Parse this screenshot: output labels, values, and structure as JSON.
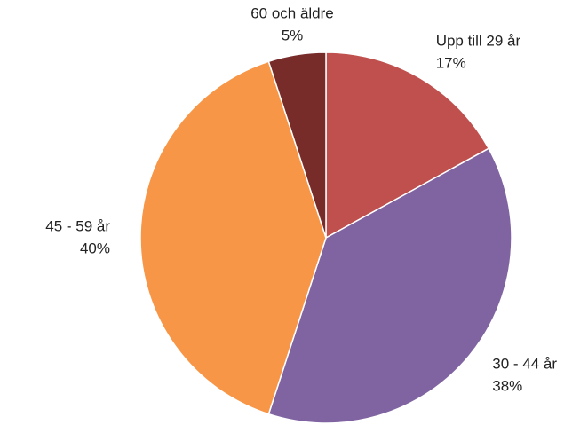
{
  "chart_data": {
    "type": "pie",
    "categories": [
      "Upp till 29 år",
      "30 - 44 år",
      "45 - 59 år",
      "60 och äldre"
    ],
    "values": [
      17,
      38,
      40,
      5
    ],
    "value_labels": [
      "17%",
      "38%",
      "40%",
      "5%"
    ],
    "colors": [
      "#c0504d",
      "#8064a2",
      "#f79646",
      "#772c2a"
    ]
  }
}
